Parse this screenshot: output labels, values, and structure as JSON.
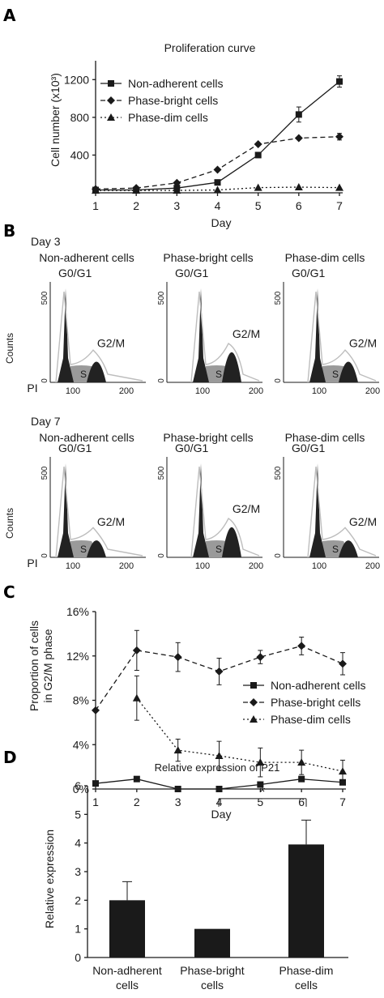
{
  "colors": {
    "panel_label": "#2f7f8f",
    "ink": "#1a1a1a",
    "dna_fill": "#222222",
    "s_fill": "#9a9a9a",
    "fit_line": "#bdbdbd"
  },
  "panels": {
    "a": "A",
    "b": "B",
    "c": "C",
    "d": "D"
  },
  "chart_data": [
    {
      "type": "line",
      "title": "Proliferation curve",
      "xlabel": "Day",
      "ylabel": "Cell number (x10³)",
      "x": [
        1,
        2,
        3,
        4,
        5,
        6,
        7
      ],
      "xlim": [
        1,
        7
      ],
      "ylim": [
        0,
        1400
      ],
      "yticks": [
        400,
        800,
        1200
      ],
      "grid": false,
      "legend_position": "top-left",
      "series": [
        {
          "name": "Non-adherent cells",
          "marker": "square",
          "line": "solid",
          "values": [
            30,
            30,
            50,
            110,
            400,
            830,
            1180
          ],
          "errors": [
            0,
            0,
            0,
            10,
            0,
            80,
            60
          ]
        },
        {
          "name": "Phase-bright cells",
          "marker": "diamond",
          "line": "dashed",
          "values": [
            40,
            50,
            105,
            245,
            515,
            580,
            595
          ],
          "errors": [
            0,
            0,
            0,
            0,
            0,
            0,
            35
          ]
        },
        {
          "name": "Phase-dim cells",
          "marker": "triangle",
          "line": "dotted",
          "values": [
            25,
            25,
            25,
            30,
            55,
            60,
            55
          ],
          "errors": [
            0,
            0,
            0,
            0,
            0,
            0,
            0
          ]
        }
      ]
    },
    {
      "type": "histogram",
      "row_labels": [
        "Day 3",
        "Day 7"
      ],
      "columns": [
        "Non-adherent cells",
        "Phase-bright cells",
        "Phase-dim cells"
      ],
      "peak_labels": {
        "g0g1": "G0/G1",
        "g2m": "G2/M",
        "s": "S"
      },
      "ylabel": "Counts",
      "xlabel": "PI",
      "ytick": "500",
      "ytick_zero": "0",
      "xticks": [
        "100",
        "200"
      ],
      "g2m_weights": [
        [
          0.22,
          0.32,
          0.22
        ],
        [
          0.18,
          0.32,
          0.18
        ]
      ]
    },
    {
      "type": "line",
      "xlabel": "Day",
      "ylabel": "Proportion of cells in G2/M phase",
      "ylabel_lines": [
        "Proportion of cells",
        "in G2/M phase"
      ],
      "x": [
        1,
        2,
        3,
        4,
        5,
        6,
        7
      ],
      "xlim": [
        1,
        7
      ],
      "ylim": [
        0,
        16
      ],
      "yticks": [
        "0%",
        "4%",
        "8%",
        "12%",
        "16%"
      ],
      "grid": false,
      "legend_position": "right",
      "series": [
        {
          "name": "Non-adherent cells",
          "marker": "square",
          "line": "solid",
          "values": [
            0.5,
            0.9,
            0.0,
            0.0,
            0.4,
            0.9,
            0.6
          ],
          "errors": [
            0,
            0,
            0,
            0,
            0,
            0,
            0
          ]
        },
        {
          "name": "Phase-bright cells",
          "marker": "diamond",
          "line": "dashed",
          "values": [
            7.1,
            12.5,
            11.9,
            10.6,
            11.9,
            12.9,
            11.3
          ],
          "errors": [
            0,
            1.8,
            1.3,
            1.2,
            0.6,
            0.8,
            1.0
          ]
        },
        {
          "name": "Phase-dim cells",
          "marker": "triangle",
          "line": "dotted",
          "values": [
            null,
            8.2,
            3.5,
            3.0,
            2.4,
            2.4,
            1.6
          ],
          "errors": [
            0,
            2.0,
            1.0,
            1.3,
            1.3,
            1.1,
            1.0
          ]
        }
      ]
    },
    {
      "type": "bar",
      "title": "Relative expression of P21",
      "ylabel": "Relative expression",
      "categories": [
        "Non-adherent\ncells",
        "Phase-bright\ncells",
        "Phase-dim\ncells"
      ],
      "values": [
        2.0,
        1.0,
        3.95
      ],
      "errors": [
        0.65,
        0,
        0.85
      ],
      "ylim": [
        0,
        6
      ],
      "yticks": [
        0,
        1,
        2,
        3,
        4,
        5,
        6
      ],
      "annotation": "*"
    }
  ]
}
